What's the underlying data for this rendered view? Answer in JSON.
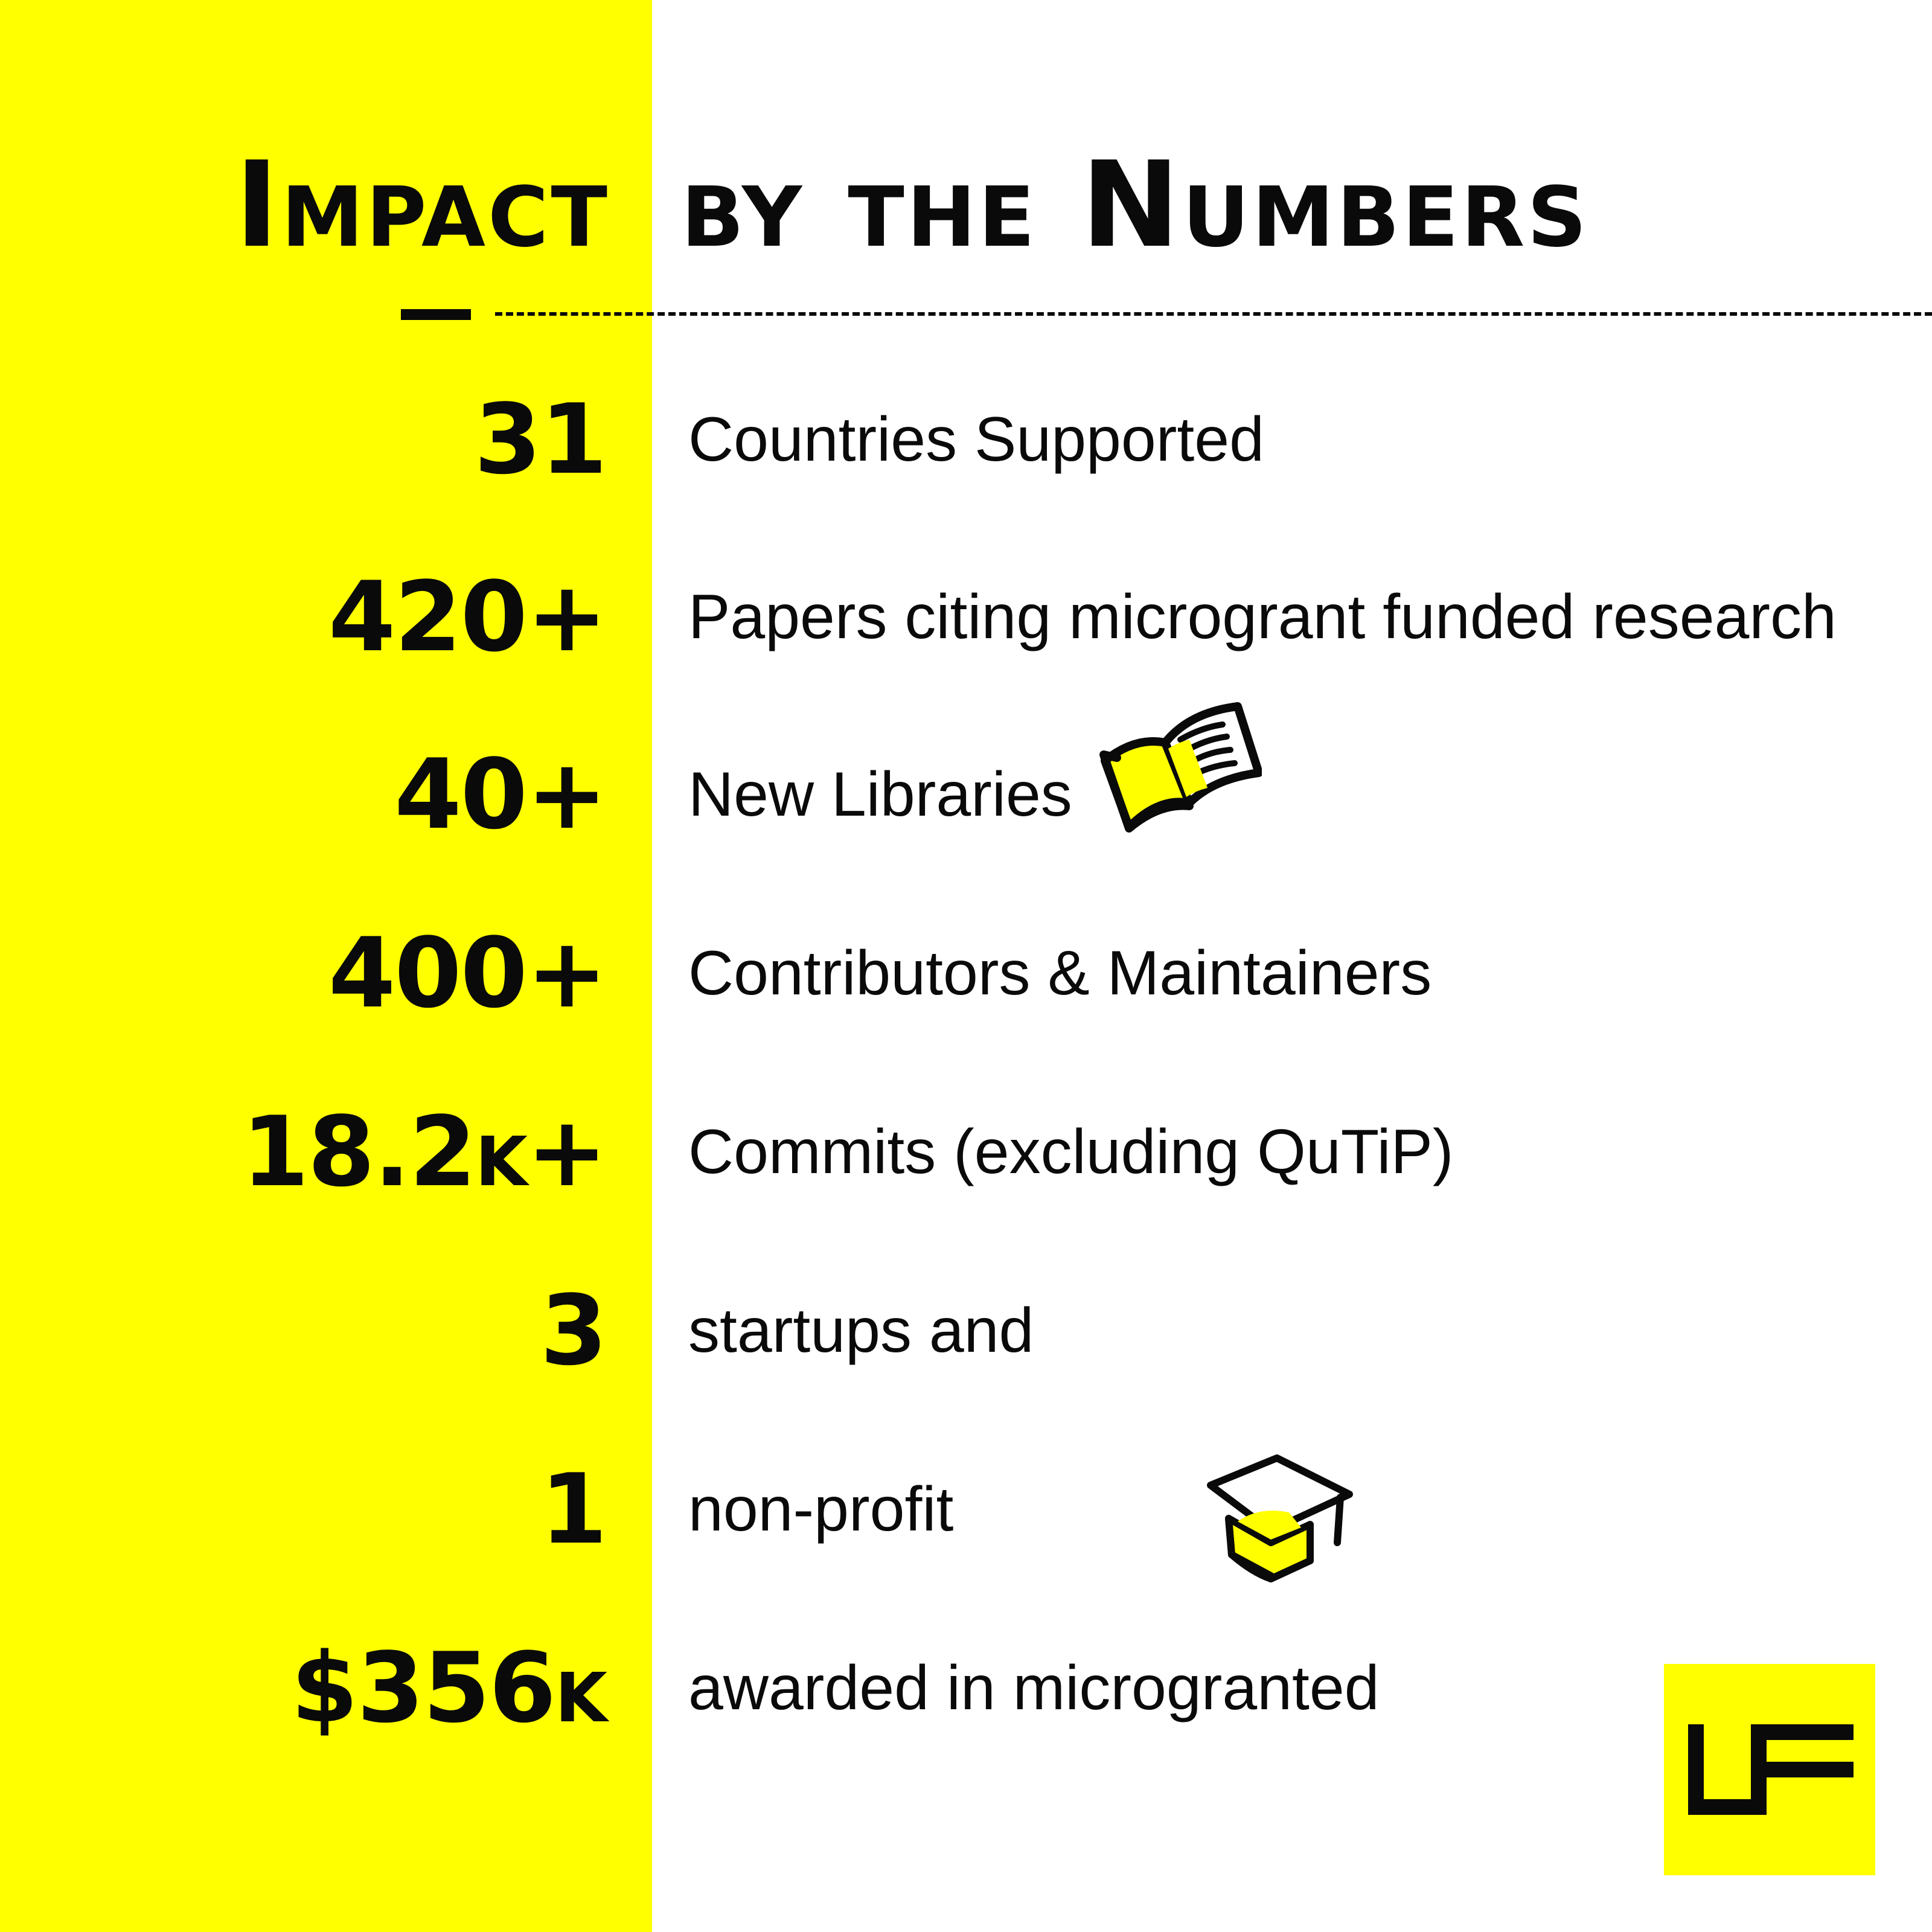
{
  "title": {
    "left": "Impact",
    "right": "by the Numbers"
  },
  "stats": [
    {
      "value": "31",
      "label": "Countries Supported"
    },
    {
      "value": "420+",
      "label": "Papers citing microgrant funded research"
    },
    {
      "value": "40+",
      "label": "New Libraries"
    },
    {
      "value": "400+",
      "label": "Contributors & Maintainers"
    },
    {
      "value": "18.2k+",
      "label": "Commits (excluding QuTiP)"
    },
    {
      "value": "3",
      "label": "startups and"
    },
    {
      "value": "1",
      "label": "non-profit"
    },
    {
      "value": "$356k",
      "label": "awarded in microgranted"
    }
  ],
  "icons": {
    "book": "open-book-icon",
    "cap": "graduation-cap-icon",
    "logo": "lf-logo"
  },
  "colors": {
    "accent": "#ffff00",
    "text": "#0a0a0a",
    "background": "#ffffff"
  }
}
